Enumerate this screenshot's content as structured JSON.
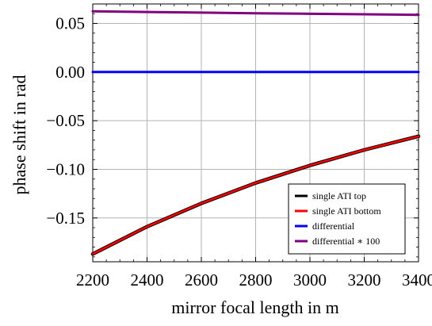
{
  "chart_data": {
    "type": "line",
    "xlabel": "mirror focal length in m",
    "ylabel": "phase shift in rad",
    "xlim": [
      2200,
      3400
    ],
    "ylim": [
      -0.195,
      0.07
    ],
    "x_ticks": [
      2200,
      2400,
      2600,
      2800,
      3000,
      3200,
      3400
    ],
    "x_tick_labels": [
      "2200",
      "2400",
      "2600",
      "2800",
      "3000",
      "3200",
      "3400"
    ],
    "y_ticks": [
      0.05,
      0.0,
      -0.05,
      -0.1,
      -0.15
    ],
    "y_tick_labels": [
      "0.05",
      "0.00",
      "−0.05",
      "−0.10",
      "−0.15"
    ],
    "grid": true,
    "legend_position": "bottom-right",
    "x": [
      2200,
      2400,
      2600,
      2800,
      3000,
      3200,
      3400
    ],
    "series": [
      {
        "name": "single ATI top",
        "color": "#000000",
        "values": [
          -0.187,
          -0.159,
          -0.135,
          -0.114,
          -0.096,
          -0.08,
          -0.066
        ]
      },
      {
        "name": "single ATI bottom",
        "color": "#ff0000",
        "values": [
          -0.187,
          -0.159,
          -0.135,
          -0.114,
          -0.096,
          -0.08,
          -0.066
        ]
      },
      {
        "name": "differential",
        "color": "#0000ff",
        "values": [
          0.0,
          0.0,
          0.0,
          0.0,
          0.0,
          0.0,
          0.0
        ]
      },
      {
        "name": "differential ∗ 100",
        "color": "#800080",
        "values": [
          0.0625,
          0.0618,
          0.0611,
          0.0605,
          0.0599,
          0.0594,
          0.0588
        ]
      }
    ]
  }
}
